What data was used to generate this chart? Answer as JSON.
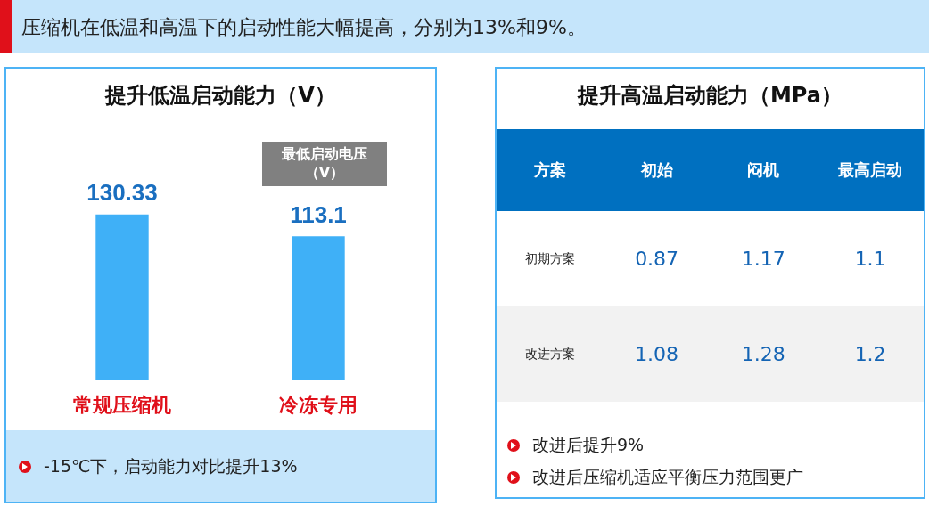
{
  "chart_data": [
    {
      "type": "other",
      "title": "压缩机在低温和高温下的启动性能大幅提高，分别为13%和9%。"
    },
    {
      "type": "bar",
      "title": "提升低温启动能力（V）",
      "categories": [
        "常规压缩机",
        "冷冻专用"
      ],
      "values": [
        130.33,
        113.1
      ],
      "color": "#3fb0f7",
      "data_labels": true,
      "tick_labels": "x",
      "annotations": [
        "最低启动电压（V）",
        "-15℃下，启动能力对比提升13%"
      ]
    },
    {
      "type": "other",
      "title": "提升高温启动能力（MPa）",
      "annotations": [
        "方案",
        "初始",
        "闷机",
        "最高启动",
        "初期方案",
        "0.87",
        "1.17",
        "1.1",
        "改进方案",
        "1.08",
        "1.28",
        "1.2",
        "改进后提升9%",
        "改进后压缩机适应平衡压力范围更广"
      ]
    }
  ]
}
